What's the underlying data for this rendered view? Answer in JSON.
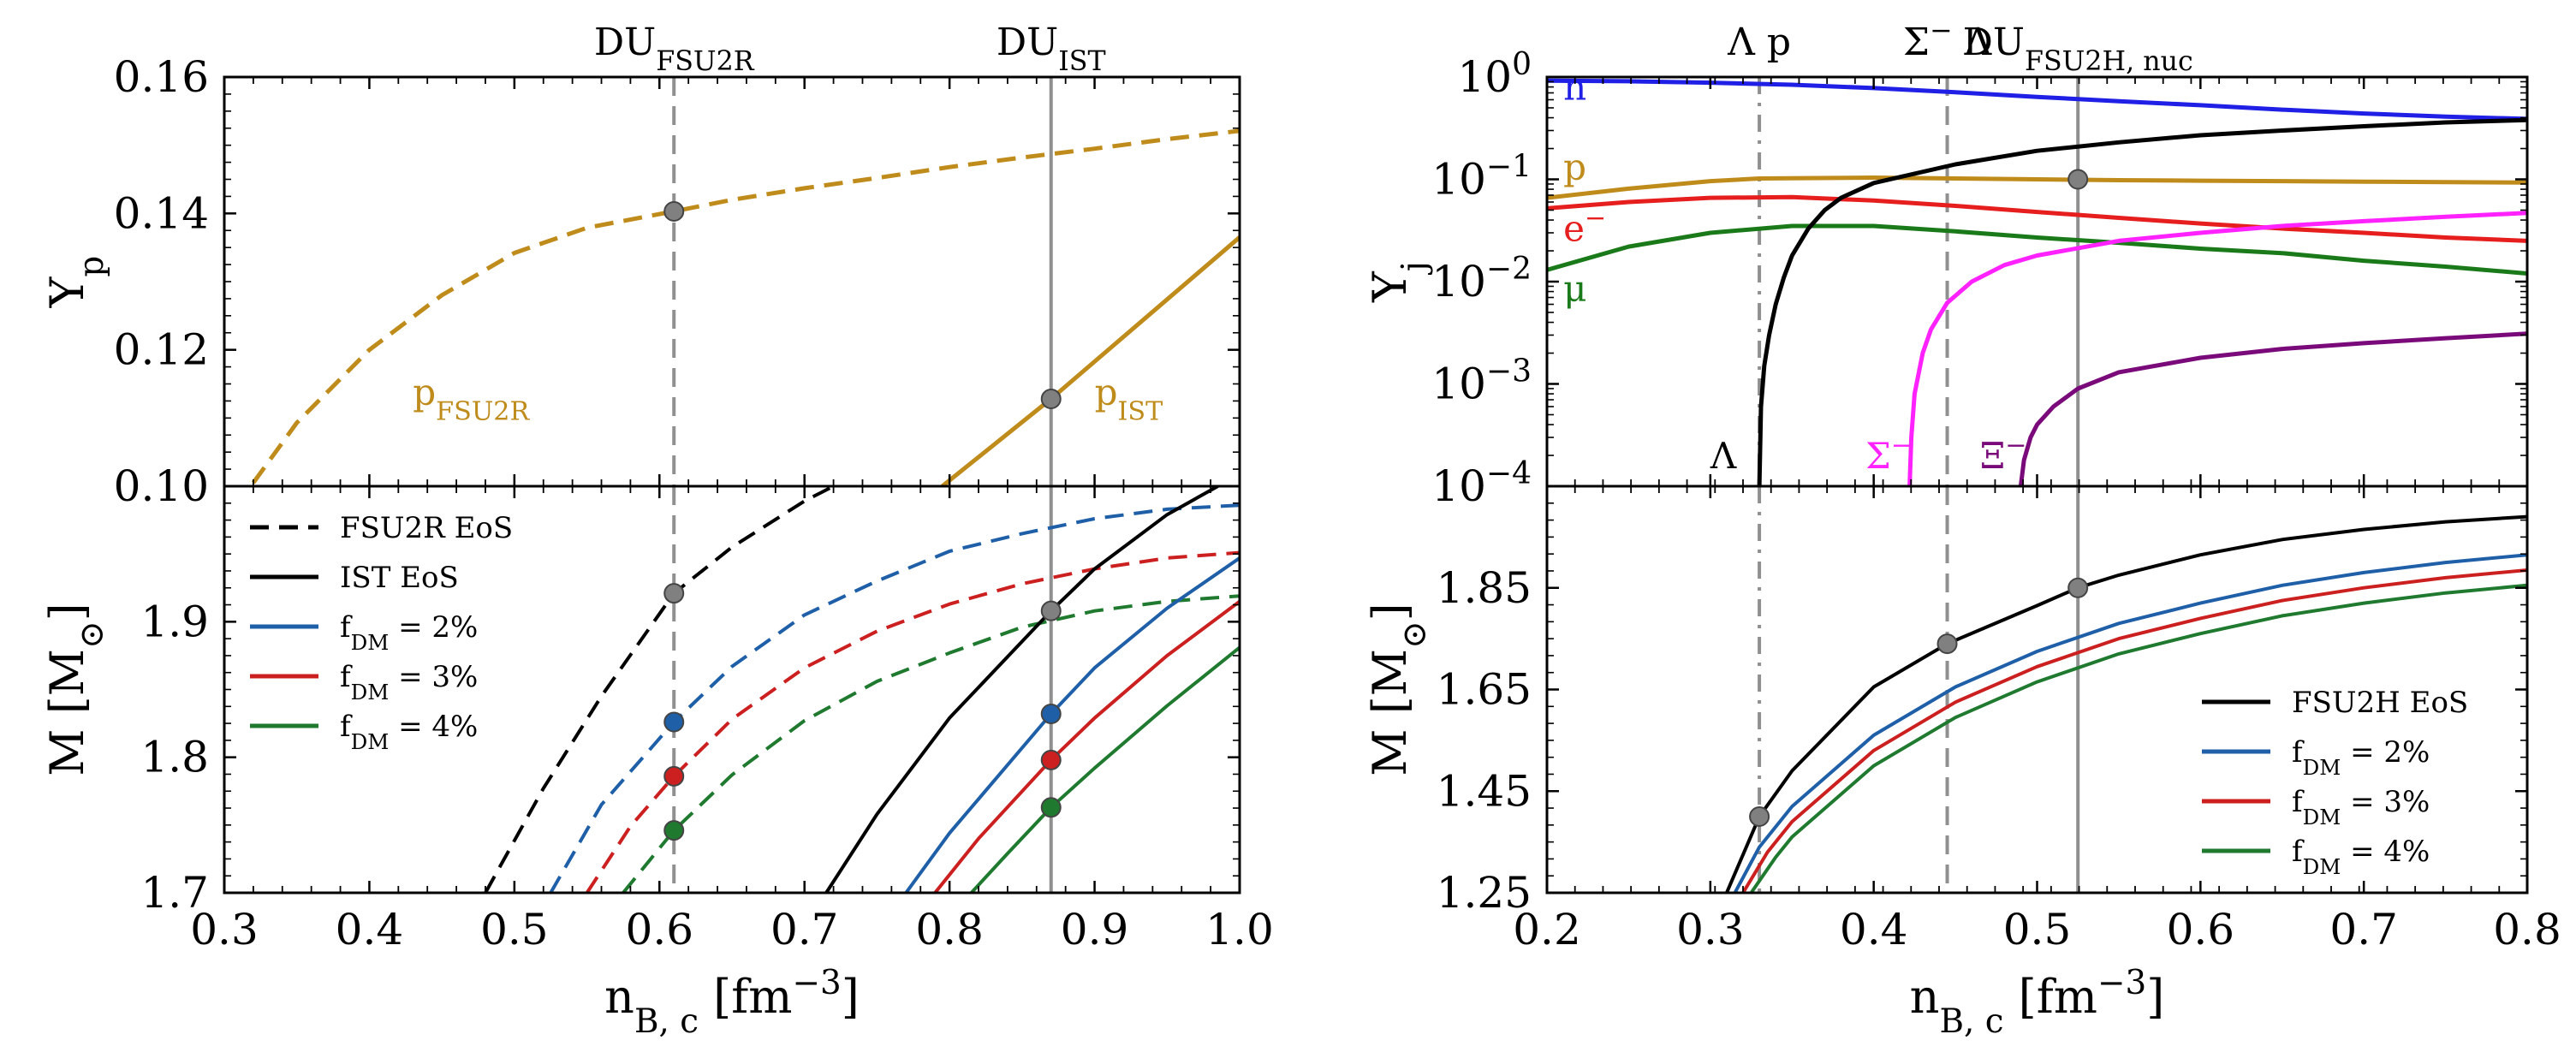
{
  "colors": {
    "proton": "#bf8c1c",
    "neutron": "#1f1fe6",
    "electron": "#e61e1e",
    "muon": "#1a7a1a",
    "lambda": "#000000",
    "sigma": "#ff22ff",
    "xi": "#7a0a7a",
    "fsu2r": "#000000",
    "f2": "#1f5fa8",
    "f3": "#cc2020",
    "f4": "#1f7a2f",
    "marker": "#808080",
    "vline": "#909090"
  },
  "chart_data": [
    {
      "type": "line",
      "panel": "left-top",
      "xlabel": "",
      "ylabel": "Y",
      "ylabel_sub": "p",
      "xlim": [
        0.3,
        1.0
      ],
      "ylim": [
        0.1,
        0.16
      ],
      "yticks": [
        "0.10",
        "0.12",
        "0.14",
        "0.16"
      ],
      "top_labels": [
        {
          "text": "DU",
          "sub": "FSU2R",
          "x": 0.61
        },
        {
          "text": "DU",
          "sub": "IST",
          "x": 0.87
        }
      ],
      "vlines": [
        {
          "x": 0.61,
          "style": "dashed"
        },
        {
          "x": 0.87,
          "style": "solid"
        }
      ],
      "series": [
        {
          "label": "p",
          "label_sub": "FSU2R",
          "label_x": 0.43,
          "label_y": 0.112,
          "style": "dashed",
          "color_key": "proton",
          "x": [
            0.32,
            0.35,
            0.4,
            0.45,
            0.5,
            0.55,
            0.61,
            0.65,
            0.7,
            0.75,
            0.8,
            0.85,
            0.9,
            0.95,
            1.0
          ],
          "y": [
            0.1005,
            0.1093,
            0.12,
            0.128,
            0.1342,
            0.1379,
            0.1403,
            0.142,
            0.1437,
            0.1452,
            0.1468,
            0.1482,
            0.1495,
            0.1509,
            0.1521
          ]
        },
        {
          "label": "p",
          "label_sub": "IST",
          "label_x": 0.9,
          "label_y": 0.112,
          "style": "solid",
          "color_key": "proton",
          "x": [
            0.795,
            0.87,
            1.0
          ],
          "y": [
            0.1,
            0.1128,
            0.1365
          ]
        }
      ],
      "markers": [
        {
          "x": 0.61,
          "y": 0.1403
        },
        {
          "x": 0.87,
          "y": 0.1128
        }
      ]
    },
    {
      "type": "line",
      "panel": "left-bottom",
      "xlabel": "n",
      "xlabel_sub": "B, c",
      "xlabel_unit": "[fm",
      "xlabel_unit_sup": "−3",
      "xlabel_unit_end": "]",
      "ylabel": "M [M",
      "ylabel_sub": "⊙",
      "ylabel_end": "]",
      "xlim": [
        0.3,
        1.0
      ],
      "ylim": [
        1.7,
        2.0
      ],
      "xticks": [
        "0.3",
        "0.4",
        "0.5",
        "0.6",
        "0.7",
        "0.8",
        "0.9",
        "1.0"
      ],
      "yticks": [
        "1.7",
        "1.8",
        "1.9"
      ],
      "vlines": [
        {
          "x": 0.61,
          "style": "dashed"
        },
        {
          "x": 0.87,
          "style": "solid"
        }
      ],
      "legend": [
        {
          "text": "FSU2R EoS",
          "style": "dashed",
          "color_key": "fsu2r"
        },
        {
          "text": "IST EoS",
          "style": "solid",
          "color_key": "fsu2r"
        },
        {
          "text": "f",
          "sub": "DM",
          "rest": " = 2%",
          "style": "solid",
          "color_key": "f2"
        },
        {
          "text": "f",
          "sub": "DM",
          "rest": " = 3%",
          "style": "solid",
          "color_key": "f3"
        },
        {
          "text": "f",
          "sub": "DM",
          "rest": " = 4%",
          "style": "solid",
          "color_key": "f4"
        }
      ],
      "series": [
        {
          "name": "FSU2R EoS",
          "style": "dashed",
          "color_key": "fsu2r",
          "x": [
            0.48,
            0.52,
            0.56,
            0.61,
            0.65,
            0.7,
            0.72
          ],
          "y": [
            1.7,
            1.777,
            1.845,
            1.921,
            1.955,
            1.989,
            2.0
          ]
        },
        {
          "name": "FSU2R 2%",
          "style": "dashed",
          "color_key": "f2",
          "x": [
            0.525,
            0.56,
            0.61,
            0.65,
            0.7,
            0.75,
            0.8,
            0.85,
            0.9,
            0.95,
            1.0
          ],
          "y": [
            1.7,
            1.765,
            1.826,
            1.867,
            1.905,
            1.93,
            1.952,
            1.965,
            1.976,
            1.983,
            1.986
          ]
        },
        {
          "name": "FSU2R 3%",
          "style": "dashed",
          "color_key": "f3",
          "x": [
            0.55,
            0.58,
            0.61,
            0.65,
            0.7,
            0.75,
            0.8,
            0.85,
            0.9,
            0.95,
            1.0
          ],
          "y": [
            1.7,
            1.749,
            1.786,
            1.828,
            1.866,
            1.893,
            1.913,
            1.928,
            1.939,
            1.947,
            1.951
          ]
        },
        {
          "name": "FSU2R 4%",
          "style": "dashed",
          "color_key": "f4",
          "x": [
            0.575,
            0.61,
            0.65,
            0.7,
            0.75,
            0.8,
            0.85,
            0.9,
            0.95,
            1.0
          ],
          "y": [
            1.7,
            1.746,
            1.787,
            1.827,
            1.856,
            1.877,
            1.896,
            1.908,
            1.915,
            1.919
          ]
        },
        {
          "name": "IST EoS",
          "style": "solid",
          "color_key": "fsu2r",
          "x": [
            0.715,
            0.75,
            0.8,
            0.87,
            0.9,
            0.95,
            0.985
          ],
          "y": [
            1.7,
            1.758,
            1.829,
            1.908,
            1.939,
            1.979,
            2.0
          ]
        },
        {
          "name": "IST 2%",
          "style": "solid",
          "color_key": "f2",
          "x": [
            0.77,
            0.8,
            0.87,
            0.9,
            0.95,
            1.0
          ],
          "y": [
            1.7,
            1.744,
            1.832,
            1.866,
            1.91,
            1.947
          ]
        },
        {
          "name": "IST 3%",
          "style": "solid",
          "color_key": "f3",
          "x": [
            0.79,
            0.82,
            0.87,
            0.9,
            0.95,
            1.0
          ],
          "y": [
            1.7,
            1.74,
            1.798,
            1.829,
            1.875,
            1.915
          ]
        },
        {
          "name": "IST 4%",
          "style": "solid",
          "color_key": "f4",
          "x": [
            0.815,
            0.84,
            0.87,
            0.9,
            0.95,
            1.0
          ],
          "y": [
            1.7,
            1.729,
            1.763,
            1.792,
            1.838,
            1.881
          ]
        }
      ],
      "markers": [
        {
          "x": 0.61,
          "y": 1.921,
          "color_key": "marker"
        },
        {
          "x": 0.61,
          "y": 1.826,
          "color_key": "f2"
        },
        {
          "x": 0.61,
          "y": 1.786,
          "color_key": "f3"
        },
        {
          "x": 0.61,
          "y": 1.746,
          "color_key": "f4"
        },
        {
          "x": 0.87,
          "y": 1.908,
          "color_key": "marker"
        },
        {
          "x": 0.87,
          "y": 1.832,
          "color_key": "f2"
        },
        {
          "x": 0.87,
          "y": 1.798,
          "color_key": "f3"
        },
        {
          "x": 0.87,
          "y": 1.763,
          "color_key": "f4"
        }
      ]
    },
    {
      "type": "line",
      "panel": "right-top",
      "yscale": "log",
      "ylabel": "Y",
      "ylabel_sub": "j",
      "xlim": [
        0.2,
        0.8
      ],
      "ylim": [
        0.0001,
        1
      ],
      "yticks": [
        {
          "base": "10",
          "exp": "0",
          "value": 1
        },
        {
          "base": "10",
          "exp": "−1",
          "value": 0.1
        },
        {
          "base": "10",
          "exp": "−2",
          "value": 0.01
        },
        {
          "base": "10",
          "exp": "−3",
          "value": 0.001
        },
        {
          "base": "10",
          "exp": "−4",
          "value": 0.0001
        }
      ],
      "top_labels": [
        {
          "text": "Λ p",
          "sub": "",
          "x": 0.33
        },
        {
          "text": "Σ",
          "sup": "−",
          "rest": " Λ",
          "sub": "",
          "x": 0.445
        },
        {
          "text": "DU",
          "sub": "FSU2H, nuc",
          "x": 0.525
        }
      ],
      "vlines": [
        {
          "x": 0.33,
          "style": "dashdot"
        },
        {
          "x": 0.445,
          "style": "dashed"
        },
        {
          "x": 0.525,
          "style": "solid"
        }
      ],
      "series": [
        {
          "label": "n",
          "label_x": 0.21,
          "label_y": 0.6,
          "color_key": "neutron",
          "x": [
            0.2,
            0.25,
            0.3,
            0.35,
            0.4,
            0.45,
            0.5,
            0.55,
            0.6,
            0.65,
            0.7,
            0.75,
            0.8
          ],
          "y": [
            0.92,
            0.91,
            0.88,
            0.84,
            0.78,
            0.71,
            0.64,
            0.58,
            0.53,
            0.48,
            0.44,
            0.41,
            0.39
          ]
        },
        {
          "label": "p",
          "label_x": 0.21,
          "label_y": 0.1,
          "color_key": "proton",
          "x": [
            0.2,
            0.25,
            0.3,
            0.33,
            0.4,
            0.45,
            0.5,
            0.55,
            0.6,
            0.65,
            0.7,
            0.75,
            0.8
          ],
          "y": [
            0.066,
            0.081,
            0.096,
            0.102,
            0.104,
            0.102,
            0.1,
            0.098,
            0.097,
            0.096,
            0.095,
            0.094,
            0.093
          ]
        },
        {
          "label": "e",
          "label_sup": "−",
          "label_x": 0.21,
          "label_y": 0.025,
          "color_key": "electron",
          "x": [
            0.2,
            0.25,
            0.3,
            0.35,
            0.4,
            0.45,
            0.5,
            0.55,
            0.6,
            0.65,
            0.7,
            0.75,
            0.8
          ],
          "y": [
            0.052,
            0.06,
            0.066,
            0.067,
            0.062,
            0.055,
            0.048,
            0.042,
            0.037,
            0.033,
            0.03,
            0.027,
            0.025
          ]
        },
        {
          "label": "μ",
          "label_x": 0.21,
          "label_y": 0.0065,
          "color_key": "muon",
          "x": [
            0.2,
            0.25,
            0.3,
            0.35,
            0.4,
            0.45,
            0.5,
            0.55,
            0.6,
            0.65,
            0.7,
            0.75,
            0.8
          ],
          "y": [
            0.013,
            0.022,
            0.03,
            0.035,
            0.035,
            0.031,
            0.027,
            0.024,
            0.021,
            0.019,
            0.016,
            0.014,
            0.012
          ]
        },
        {
          "label": "Λ",
          "label_x": 0.3,
          "label_y": 0.00015,
          "color_key": "lambda",
          "x": [
            0.33,
            0.331,
            0.333,
            0.336,
            0.34,
            0.345,
            0.35,
            0.36,
            0.37,
            0.38,
            0.4,
            0.45,
            0.5,
            0.55,
            0.6,
            0.65,
            0.7,
            0.75,
            0.8
          ],
          "y": [
            0.0001,
            0.0006,
            0.0015,
            0.003,
            0.006,
            0.011,
            0.018,
            0.033,
            0.05,
            0.066,
            0.092,
            0.14,
            0.19,
            0.23,
            0.27,
            0.3,
            0.33,
            0.36,
            0.38
          ]
        },
        {
          "label": "Σ",
          "label_sup": "−",
          "label_x": 0.395,
          "label_y": 0.00015,
          "color_key": "sigma",
          "x": [
            0.422,
            0.423,
            0.425,
            0.43,
            0.435,
            0.445,
            0.46,
            0.48,
            0.5,
            0.55,
            0.6,
            0.65,
            0.7,
            0.75,
            0.8
          ],
          "y": [
            0.0001,
            0.0003,
            0.0008,
            0.002,
            0.0034,
            0.0062,
            0.01,
            0.0145,
            0.018,
            0.025,
            0.03,
            0.035,
            0.039,
            0.043,
            0.047
          ]
        },
        {
          "label": "Ξ",
          "label_sup": "−",
          "label_x": 0.465,
          "label_y": 0.00015,
          "color_key": "xi",
          "x": [
            0.49,
            0.492,
            0.496,
            0.5,
            0.51,
            0.525,
            0.55,
            0.6,
            0.65,
            0.7,
            0.75,
            0.8
          ],
          "y": [
            0.0001,
            0.00018,
            0.0003,
            0.0004,
            0.0006,
            0.0009,
            0.0013,
            0.0018,
            0.0022,
            0.0025,
            0.0028,
            0.0031
          ]
        }
      ],
      "markers": [
        {
          "x": 0.525,
          "y": 0.1
        }
      ]
    },
    {
      "type": "line",
      "panel": "right-bottom",
      "xlabel": "n",
      "xlabel_sub": "B, c",
      "xlabel_unit": "[fm",
      "xlabel_unit_sup": "−3",
      "xlabel_unit_end": "]",
      "ylabel": "M [M",
      "ylabel_sub": "⊙",
      "ylabel_end": "]",
      "xlim": [
        0.2,
        0.8
      ],
      "ylim": [
        1.25,
        2.05
      ],
      "xticks": [
        "0.2",
        "0.3",
        "0.4",
        "0.5",
        "0.6",
        "0.7",
        "0.8"
      ],
      "yticks": [
        "1.25",
        "1.45",
        "1.65",
        "1.85"
      ],
      "ytick_values": [
        1.25,
        1.45,
        1.65,
        1.85
      ],
      "vlines": [
        {
          "x": 0.33,
          "style": "dashdot"
        },
        {
          "x": 0.445,
          "style": "dashed"
        },
        {
          "x": 0.525,
          "style": "solid"
        }
      ],
      "legend": [
        {
          "text": "FSU2H EoS",
          "style": "solid",
          "color_key": "fsu2r"
        },
        {
          "text": "f",
          "sub": "DM",
          "rest": " = 2%",
          "style": "solid",
          "color_key": "f2"
        },
        {
          "text": "f",
          "sub": "DM",
          "rest": " = 3%",
          "style": "solid",
          "color_key": "f3"
        },
        {
          "text": "f",
          "sub": "DM",
          "rest": " = 4%",
          "style": "solid",
          "color_key": "f4"
        }
      ],
      "series": [
        {
          "name": "FSU2H EoS",
          "color_key": "fsu2r",
          "x": [
            0.31,
            0.33,
            0.35,
            0.4,
            0.445,
            0.5,
            0.525,
            0.55,
            0.6,
            0.65,
            0.7,
            0.75,
            0.8
          ],
          "y": [
            1.25,
            1.4,
            1.49,
            1.655,
            1.74,
            1.815,
            1.85,
            1.875,
            1.915,
            1.945,
            1.965,
            1.98,
            1.99
          ]
        },
        {
          "name": "f_DM = 2%",
          "color_key": "f2",
          "x": [
            0.315,
            0.33,
            0.35,
            0.4,
            0.45,
            0.5,
            0.55,
            0.6,
            0.65,
            0.7,
            0.75,
            0.8
          ],
          "y": [
            1.25,
            1.34,
            1.42,
            1.56,
            1.655,
            1.725,
            1.78,
            1.82,
            1.855,
            1.88,
            1.9,
            1.915
          ]
        },
        {
          "name": "f_DM = 3%",
          "color_key": "f3",
          "x": [
            0.32,
            0.335,
            0.35,
            0.4,
            0.45,
            0.5,
            0.55,
            0.6,
            0.65,
            0.7,
            0.75,
            0.8
          ],
          "y": [
            1.25,
            1.33,
            1.39,
            1.53,
            1.625,
            1.695,
            1.75,
            1.79,
            1.825,
            1.85,
            1.87,
            1.885
          ]
        },
        {
          "name": "f_DM = 4%",
          "color_key": "f4",
          "x": [
            0.325,
            0.34,
            0.35,
            0.4,
            0.45,
            0.5,
            0.55,
            0.6,
            0.65,
            0.7,
            0.75,
            0.8
          ],
          "y": [
            1.25,
            1.32,
            1.36,
            1.5,
            1.595,
            1.665,
            1.72,
            1.76,
            1.795,
            1.82,
            1.84,
            1.855
          ]
        }
      ],
      "markers": [
        {
          "x": 0.33,
          "y": 1.4
        },
        {
          "x": 0.445,
          "y": 1.74
        },
        {
          "x": 0.525,
          "y": 1.85
        }
      ]
    }
  ]
}
